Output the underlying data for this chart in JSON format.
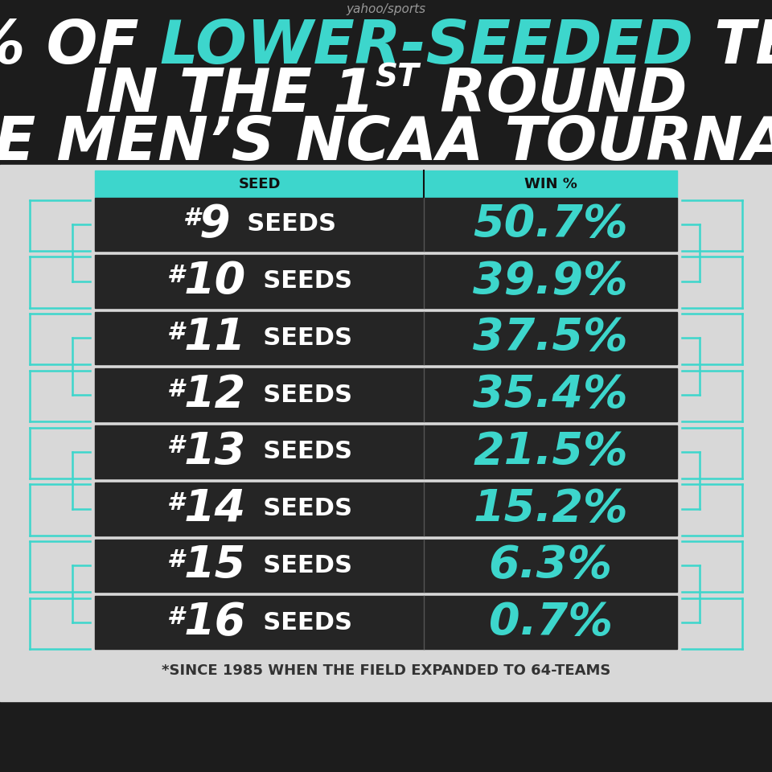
{
  "yahoo_sports": "yahoo/sports",
  "col1_header": "SEED",
  "col2_header": "WIN %",
  "seeds": [
    9,
    10,
    11,
    12,
    13,
    14,
    15,
    16
  ],
  "win_pcts": [
    "50.7%",
    "39.9%",
    "37.5%",
    "35.4%",
    "21.5%",
    "15.2%",
    "6.3%",
    "0.7%"
  ],
  "footnote": "*SINCE 1985 WHEN THE FIELD EXPANDED TO 64-TEAMS",
  "bg_color": "#1c1c1c",
  "row_bg": "#252525",
  "teal_color": "#3dd6cc",
  "white_color": "#ffffff",
  "header_bg": "#3dd6cc",
  "bracket_color": "#3dd6cc",
  "outer_bg": "#d8d8d8",
  "fs_title": 54,
  "fs_num": 40,
  "fs_hash": 22,
  "fs_seeds_label": 22,
  "fs_winpct": 40,
  "fs_header": 13,
  "fs_footnote": 13,
  "fs_yahoo": 11
}
